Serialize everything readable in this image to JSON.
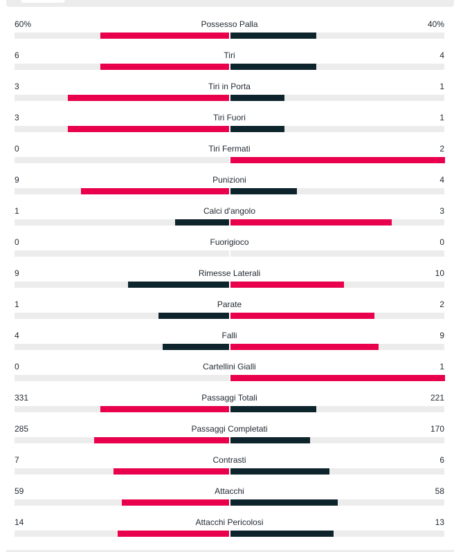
{
  "colors": {
    "home": "#e8004c",
    "away": "#0d242c",
    "track": "#ececec"
  },
  "stats": [
    {
      "label": "Possesso Palla",
      "home": "60%",
      "away": "40%",
      "home_share": 0.6,
      "away_share": 0.4,
      "home_color": "home",
      "away_color": "away"
    },
    {
      "label": "Tiri",
      "home": "6",
      "away": "4",
      "home_share": 0.6,
      "away_share": 0.4,
      "home_color": "home",
      "away_color": "away"
    },
    {
      "label": "Tiri in Porta",
      "home": "3",
      "away": "1",
      "home_share": 0.75,
      "away_share": 0.25,
      "home_color": "home",
      "away_color": "away"
    },
    {
      "label": "Tiri Fuori",
      "home": "3",
      "away": "1",
      "home_share": 0.75,
      "away_share": 0.25,
      "home_color": "home",
      "away_color": "away"
    },
    {
      "label": "Tiri Fermati",
      "home": "0",
      "away": "2",
      "home_share": 0,
      "away_share": 1,
      "home_color": "away",
      "away_color": "home"
    },
    {
      "label": "Punizioni",
      "home": "9",
      "away": "4",
      "home_share": 0.69,
      "away_share": 0.31,
      "home_color": "home",
      "away_color": "away"
    },
    {
      "label": "Calci d'angolo",
      "home": "1",
      "away": "3",
      "home_share": 0.25,
      "away_share": 0.75,
      "home_color": "away",
      "away_color": "home"
    },
    {
      "label": "Fuorigioco",
      "home": "0",
      "away": "0",
      "home_share": 0,
      "away_share": 0,
      "home_color": "home",
      "away_color": "away"
    },
    {
      "label": "Rimesse Laterali",
      "home": "9",
      "away": "10",
      "home_share": 0.47,
      "away_share": 0.53,
      "home_color": "away",
      "away_color": "home"
    },
    {
      "label": "Parate",
      "home": "1",
      "away": "2",
      "home_share": 0.33,
      "away_share": 0.67,
      "home_color": "away",
      "away_color": "home"
    },
    {
      "label": "Falli",
      "home": "4",
      "away": "9",
      "home_share": 0.31,
      "away_share": 0.69,
      "home_color": "away",
      "away_color": "home"
    },
    {
      "label": "Cartellini Gialli",
      "home": "0",
      "away": "1",
      "home_share": 0,
      "away_share": 1,
      "home_color": "away",
      "away_color": "home"
    },
    {
      "label": "Passaggi Totali",
      "home": "331",
      "away": "221",
      "home_share": 0.6,
      "away_share": 0.4,
      "home_color": "home",
      "away_color": "away"
    },
    {
      "label": "Passaggi Completati",
      "home": "285",
      "away": "170",
      "home_share": 0.63,
      "away_share": 0.37,
      "home_color": "home",
      "away_color": "away"
    },
    {
      "label": "Contrasti",
      "home": "7",
      "away": "6",
      "home_share": 0.54,
      "away_share": 0.46,
      "home_color": "home",
      "away_color": "away"
    },
    {
      "label": "Attacchi",
      "home": "59",
      "away": "58",
      "home_share": 0.5,
      "away_share": 0.5,
      "home_color": "home",
      "away_color": "away"
    },
    {
      "label": "Attacchi Pericolosi",
      "home": "14",
      "away": "13",
      "home_share": 0.52,
      "away_share": 0.48,
      "home_color": "home",
      "away_color": "away"
    }
  ]
}
